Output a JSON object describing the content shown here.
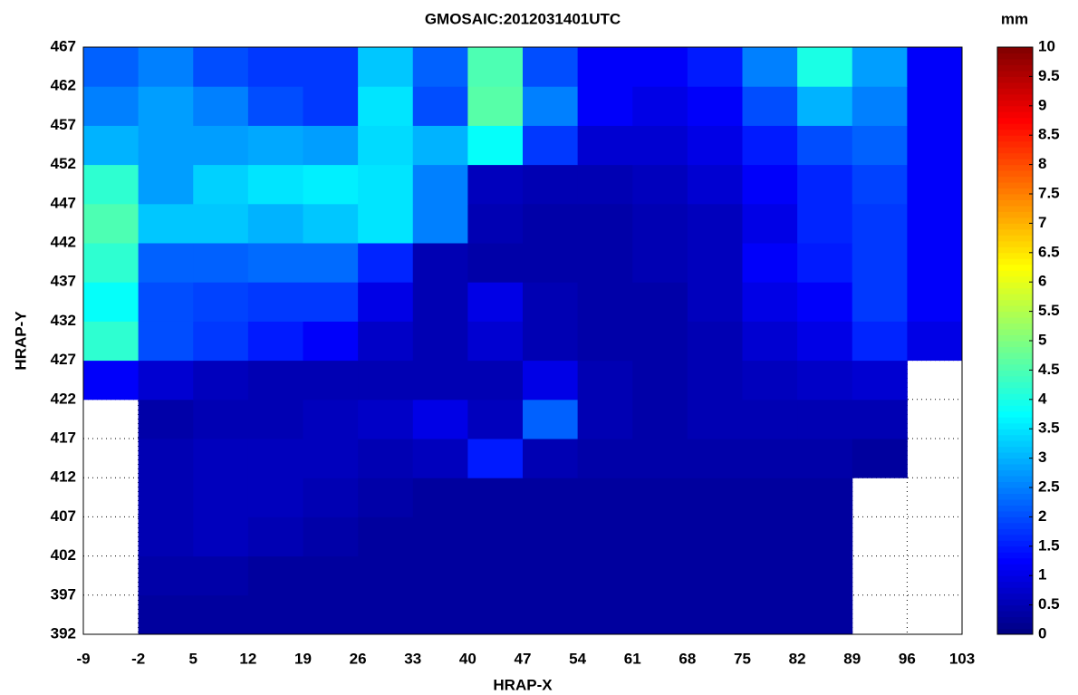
{
  "chart_data": {
    "type": "heatmap",
    "title": "GMOSAIC:2012031401UTC",
    "x_label": "HRAP-X",
    "y_label": "HRAP-Y",
    "colorbar_label": "mm",
    "colormap": "jet",
    "grid": true,
    "xbins": [
      -9,
      -2,
      5,
      12,
      19,
      26,
      33,
      40,
      47,
      54,
      61,
      68,
      75,
      82,
      89,
      96,
      103
    ],
    "ybins": [
      392,
      397,
      402,
      407,
      412,
      417,
      422,
      427,
      432,
      437,
      442,
      447,
      452,
      457,
      462,
      467
    ],
    "values": [
      [
        null,
        0.3,
        0.3,
        0.3,
        0.3,
        0.3,
        0.3,
        0.3,
        0.3,
        0.3,
        0.3,
        0.3,
        0.3,
        0.3,
        null,
        null
      ],
      [
        null,
        0.4,
        0.4,
        0.3,
        0.3,
        0.3,
        0.3,
        0.3,
        0.3,
        0.3,
        0.3,
        0.3,
        0.3,
        0.3,
        null,
        null
      ],
      [
        null,
        0.5,
        0.6,
        0.5,
        0.4,
        0.3,
        0.3,
        0.3,
        0.3,
        0.3,
        0.3,
        0.3,
        0.3,
        0.3,
        null,
        null
      ],
      [
        null,
        0.5,
        0.6,
        0.6,
        0.5,
        0.4,
        0.3,
        0.3,
        0.3,
        0.3,
        0.3,
        0.3,
        0.3,
        0.3,
        null,
        null
      ],
      [
        null,
        0.5,
        0.6,
        0.6,
        0.6,
        0.5,
        0.6,
        1.5,
        0.5,
        0.4,
        0.4,
        0.4,
        0.4,
        0.4,
        0.3,
        null
      ],
      [
        null,
        0.4,
        0.5,
        0.5,
        0.6,
        0.7,
        1.0,
        0.6,
        2.2,
        0.5,
        0.4,
        0.5,
        0.5,
        0.5,
        0.5,
        null
      ],
      [
        1.2,
        0.8,
        0.6,
        0.5,
        0.5,
        0.5,
        0.5,
        0.5,
        1.0,
        0.5,
        0.4,
        0.5,
        0.6,
        0.7,
        0.8,
        null
      ],
      [
        4.2,
        2.0,
        1.8,
        1.5,
        1.2,
        0.7,
        0.5,
        0.8,
        0.5,
        0.4,
        0.4,
        0.5,
        0.8,
        1.0,
        1.6,
        1.0
      ],
      [
        3.8,
        2.0,
        1.9,
        1.8,
        1.8,
        1.0,
        0.5,
        1.0,
        0.5,
        0.4,
        0.4,
        0.6,
        1.0,
        1.2,
        1.8,
        1.2
      ],
      [
        4.2,
        2.2,
        2.2,
        2.3,
        2.3,
        1.6,
        0.5,
        0.4,
        0.4,
        0.4,
        0.5,
        0.6,
        1.2,
        1.5,
        1.8,
        1.2
      ],
      [
        4.5,
        3.2,
        3.2,
        3.0,
        3.2,
        3.5,
        2.5,
        0.5,
        0.4,
        0.4,
        0.5,
        0.6,
        1.0,
        1.6,
        1.8,
        1.2
      ],
      [
        4.2,
        2.8,
        3.3,
        3.5,
        3.6,
        3.5,
        2.5,
        0.6,
        0.5,
        0.5,
        0.6,
        0.8,
        1.2,
        1.6,
        1.9,
        1.2
      ],
      [
        3.0,
        2.8,
        2.8,
        2.9,
        2.8,
        3.4,
        3.0,
        3.8,
        1.8,
        0.8,
        0.8,
        1.0,
        1.5,
        2.0,
        2.2,
        1.2
      ],
      [
        2.5,
        2.8,
        2.5,
        2.0,
        1.8,
        3.5,
        2.0,
        4.6,
        2.5,
        1.2,
        1.0,
        1.2,
        2.0,
        3.0,
        2.5,
        1.2
      ],
      [
        2.2,
        2.5,
        2.0,
        1.8,
        1.8,
        3.2,
        2.2,
        4.5,
        2.0,
        1.2,
        1.2,
        1.5,
        2.5,
        4.0,
        2.8,
        1.2
      ]
    ],
    "xlim": [
      -9,
      103
    ],
    "xticks": [
      -9,
      -2,
      5,
      12,
      19,
      26,
      33,
      40,
      47,
      54,
      61,
      68,
      75,
      82,
      89,
      96,
      103
    ],
    "ylim": [
      392,
      467
    ],
    "yticks": [
      392,
      397,
      402,
      407,
      412,
      417,
      422,
      427,
      432,
      437,
      442,
      447,
      452,
      457,
      462,
      467
    ],
    "clim": [
      0,
      10
    ],
    "cticks": [
      0,
      0.5,
      1,
      1.5,
      2,
      2.5,
      3,
      3.5,
      4,
      4.5,
      5,
      5.5,
      6,
      6.5,
      7,
      7.5,
      8,
      8.5,
      9,
      9.5,
      10
    ]
  }
}
